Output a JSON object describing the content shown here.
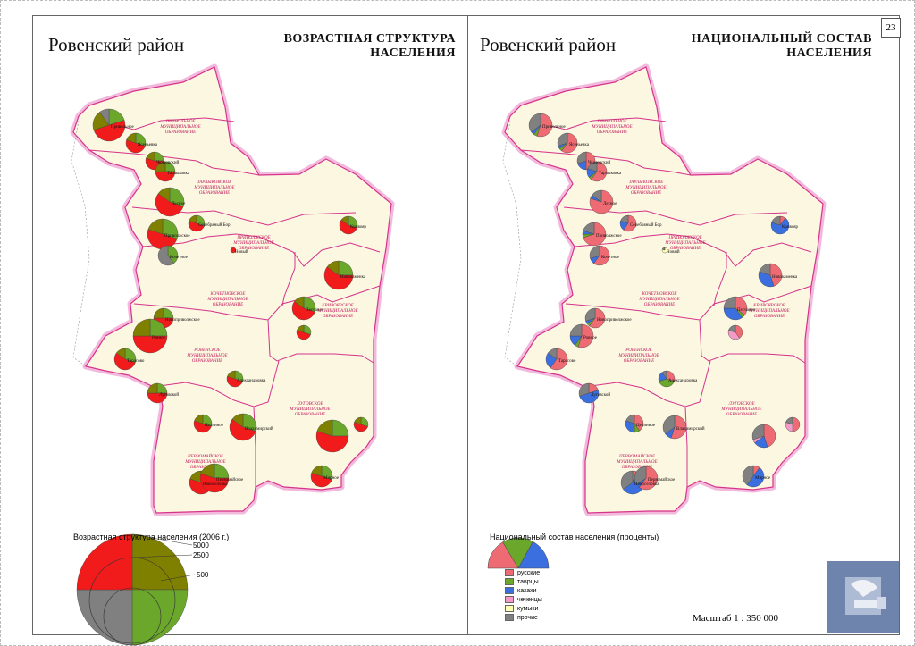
{
  "page_number": "23",
  "left_map": {
    "region_title": "Ровенский район",
    "heading_line1": "ВОЗРАСТНАЯ СТРУКТУРА",
    "heading_line2": "НАСЕЛЕНИЯ",
    "legend": {
      "title": "Возрастная структура населения (2006 г.)",
      "scale_values": [
        "5000",
        "2500",
        "500"
      ]
    }
  },
  "right_map": {
    "region_title": "Ровенский район",
    "heading_line1": "НАЦИОНАЛЬНЫЙ СОСТАВ",
    "heading_line2": "НАСЕЛЕНИЯ",
    "legend": {
      "title": "Национальный состав населения (проценты)",
      "items": [
        {
          "label": "русские",
          "color": "#ef6b73"
        },
        {
          "label": "таврцы",
          "color": "#6aa72b"
        },
        {
          "label": "казахи",
          "color": "#3b6fe0"
        },
        {
          "label": "чеченцы",
          "color": "#f49ac6"
        },
        {
          "label": "кумыки",
          "color": "#ffffb0"
        },
        {
          "label": "прочие",
          "color": "#808080"
        }
      ]
    },
    "scale_text": "Масштаб 1 : 350 000"
  },
  "municipality_labels": {
    "privolnoe": [
      "ПРИВОЛЬНОЕ",
      "МУНИЦИПАЛЬНОЕ",
      "ОБРАЗОВАНИЕ"
    ],
    "tarlykovskoe": [
      "ТАРЛЫКОВСКОЕ",
      "МУНИЦИПАЛЬНОЕ",
      "ОБРАЗОВАНИЕ"
    ],
    "privolzhskoe": [
      "ПРИВОЛЖСКОЕ",
      "МУНИЦИПАЛЬНОЕ",
      "ОБРАЗОВАНИЕ"
    ],
    "kochetnovskoe": [
      "КОЧЕТНОВСКОЕ",
      "МУНИЦИПАЛЬНОЕ",
      "ОБРАЗОВАНИЕ"
    ],
    "kriushinskoe": [
      "КРИВОЯРСКОЕ",
      "МУНИЦИПАЛЬНОЕ",
      "ОБРАЗОВАНИЕ"
    ],
    "rovenskoe": [
      "РОВЕНСКОЕ",
      "МУНИЦИПАЛЬНОЕ",
      "ОБРАЗОВАНИЕ"
    ],
    "lugovskoe": [
      "ЛУГОВСКОЕ",
      "МУНИЦИПАЛЬНОЕ",
      "ОБРАЗОВАНИЕ"
    ],
    "pervomayskoe": [
      "ПЕРВОМАЙСКОЕ",
      "МУНИЦИПАЛЬНОЕ",
      "ОБРАЗОВАНИЕ"
    ]
  },
  "colors": {
    "boundary": "#d6338a",
    "land": "#fbf7e1",
    "age_young": "#6aa72b",
    "age_working": "#f21b1b",
    "age_elderly": "#808000",
    "age_other": "#808080"
  },
  "settlements": [
    {
      "name": "Привольное"
    },
    {
      "name": "Ясеньевка"
    },
    {
      "name": "Чкаловский"
    },
    {
      "name": "Тарлыковка"
    },
    {
      "name": "Лесное"
    },
    {
      "name": "Приволжское"
    },
    {
      "name": "Кочетное"
    },
    {
      "name": "Серебряный Бор"
    },
    {
      "name": "Новый"
    },
    {
      "name": "Кривояр"
    },
    {
      "name": "Новокаменка"
    },
    {
      "name": "Песчаное"
    },
    {
      "name": "Новоприволжское"
    },
    {
      "name": "Ровное"
    },
    {
      "name": "Тарасово"
    },
    {
      "name": "Луговской"
    },
    {
      "name": "Александровка"
    },
    {
      "name": "Целинное"
    },
    {
      "name": "Владимирский"
    },
    {
      "name": "Новоселовка"
    },
    {
      "name": "Первомайское"
    },
    {
      "name": "Мирное"
    }
  ]
}
